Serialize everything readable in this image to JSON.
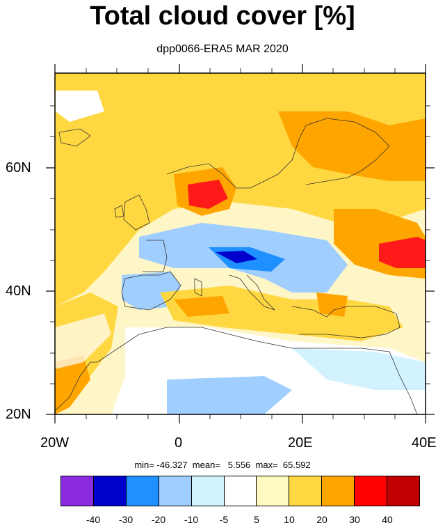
{
  "title": "Total cloud cover [%]",
  "subtitle": "dpp0066-ERA5 MAR 2020",
  "axes": {
    "lat_labels": [
      "60N",
      "40N",
      "20N"
    ],
    "lon_labels": [
      "20W",
      "0",
      "20E",
      "40E"
    ]
  },
  "stats": {
    "text": "min= -46.327  mean=   5.556  max=  65.592"
  },
  "colorbar": {
    "colors": [
      "#8a2be2",
      "#0000cd",
      "#1e90ff",
      "#a0cfff",
      "#d2f2ff",
      "#ffffff",
      "#fffac0",
      "#ffd740",
      "#ffa500",
      "#ff0000",
      "#c00000"
    ],
    "labels": [
      "-40",
      "-30",
      "-20",
      "-10",
      "-5",
      "5",
      "10",
      "20",
      "30",
      "40"
    ]
  }
}
